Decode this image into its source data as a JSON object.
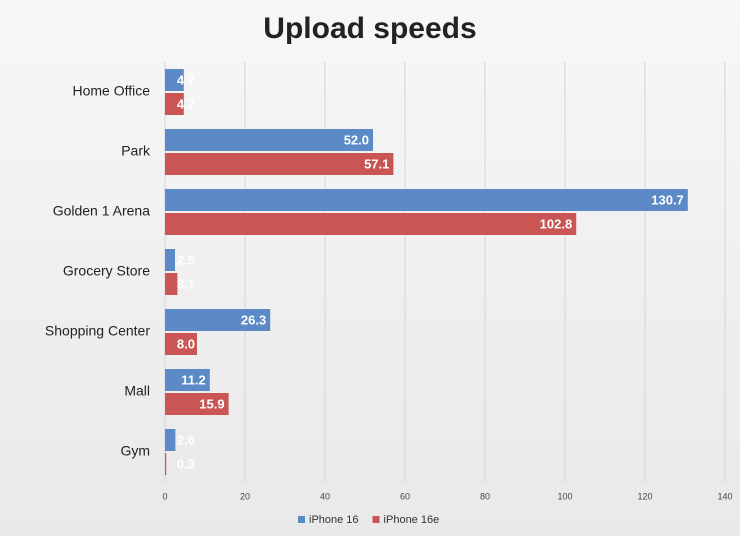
{
  "chart_data": {
    "type": "hbar",
    "title": "Upload speeds",
    "categories": [
      "Home Office",
      "Park",
      "Golden 1 Arena",
      "Grocery Store",
      "Shopping Center",
      "Mall",
      "Gym"
    ],
    "series": [
      {
        "name": "iPhone 16",
        "color": "#5b8ac6",
        "values": [
          4.7,
          52.0,
          130.7,
          2.5,
          26.3,
          11.2,
          2.6
        ],
        "value_labels": [
          "4.7",
          "52.0",
          "130.7",
          "2.5",
          "26.3",
          "11.2",
          "2.6"
        ]
      },
      {
        "name": "iPhone 16e",
        "color": "#c95555",
        "values": [
          4.7,
          57.1,
          102.8,
          3.1,
          8.0,
          15.9,
          0.3
        ],
        "value_labels": [
          "4.7",
          "57.1",
          "102.8",
          "3.1",
          "8.0",
          "15.9",
          "0.3"
        ]
      }
    ],
    "xlim": [
      0,
      140
    ],
    "xticks": [
      0,
      20,
      40,
      60,
      80,
      100,
      120,
      140
    ],
    "grid": true,
    "legend": "bottom"
  }
}
